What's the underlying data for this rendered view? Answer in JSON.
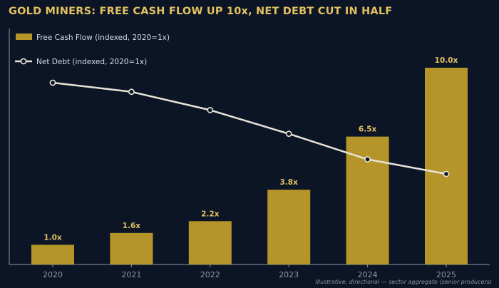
{
  "title": "GOLD MINERS: FREE CASH FLOW UP 10x, NET DEBT CUT IN HALF",
  "footnote": "Illustrative, directional — sector aggregate (senior producers)",
  "colors": {
    "background": "#0b1526",
    "title": "#e3c060",
    "bar": "#b5952a",
    "bar_label": "#e3c060",
    "line": "#e8e3d6",
    "axis": "#8a95a5",
    "legend_text": "#d8dce3"
  },
  "chart_data": {
    "type": "bar",
    "categories": [
      "2020",
      "2021",
      "2022",
      "2023",
      "2024",
      "2025"
    ],
    "series": [
      {
        "name": "Free Cash Flow (indexed, 2020=1x)",
        "type": "bar",
        "values": [
          1.0,
          1.6,
          2.2,
          3.8,
          6.5,
          10.0
        ],
        "labels": [
          "1.0x",
          "1.6x",
          "2.2x",
          "3.8x",
          "6.5x",
          "10.0x"
        ]
      },
      {
        "name": "Net Debt (indexed, 2020=1x)",
        "type": "line",
        "values": [
          1.0,
          0.95,
          0.85,
          0.72,
          0.58,
          0.5
        ]
      }
    ],
    "ylim": [
      0,
      10.0
    ],
    "grid": false,
    "legend": "top-left",
    "xlabel": "",
    "ylabel": ""
  }
}
